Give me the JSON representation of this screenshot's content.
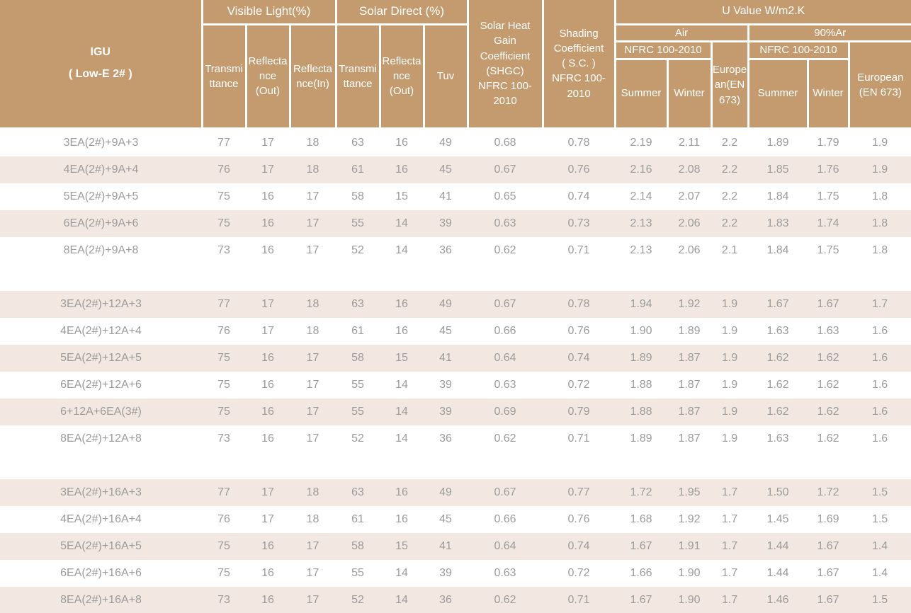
{
  "colors": {
    "header_bg": "#C49B6E",
    "header_text": "#FFFFFF",
    "stripe_bg": "#F3E8E1",
    "text": "#9B9B9B",
    "rule": "#C0976B"
  },
  "table": {
    "header": {
      "igu": "IGU\n( Low-E 2# )",
      "visible_light": "Visible Light(%)",
      "solar_direct": "Solar Direct (%)",
      "vl_transmittance": "Transmi\nttance",
      "vl_reflectance_out": "Reflecta\nnce\n(Out)",
      "vl_reflectance_in": "Reflecta\nnce(In)",
      "sd_transmittance": "Transmi\nttance",
      "sd_reflectance_out": "Reflecta\nnce\n(Out)",
      "tuv": "Tuv",
      "shgc": "Solar Heat\nGain\nCoefficient\n(SHGC)\nNFRC 100-\n2010",
      "shading_coefficient": "Shading\nCoefficient\n( S.C. )\nNFRC 100-\n2010",
      "u_value": "U Value W/m2.K",
      "air": "Air",
      "argon": "90%Ar",
      "nfrc_air": "NFRC 100-2010",
      "nfrc_argon": "NFRC 100-2010",
      "european_air": "Europe\nan(EN\n673)",
      "european_argon": "European\n(EN 673)",
      "summer_air": "Summer",
      "winter_air": "Winter",
      "summer_argon": "Summer",
      "winter_argon": "Winter"
    },
    "rows": [
      {
        "name": "3EA(2#)+9A+3",
        "shaded": false,
        "values": [
          "77",
          "17",
          "18",
          "63",
          "16",
          "49",
          "0.68",
          "0.78",
          "2.19",
          "2.11",
          "2.2",
          "1.89",
          "1.79",
          "1.9"
        ]
      },
      {
        "name": "4EA(2#)+9A+4",
        "shaded": true,
        "values": [
          "76",
          "17",
          "18",
          "61",
          "16",
          "45",
          "0.67",
          "0.76",
          "2.16",
          "2.08",
          "2.2",
          "1.85",
          "1.76",
          "1.9"
        ]
      },
      {
        "name": "5EA(2#)+9A+5",
        "shaded": false,
        "values": [
          "75",
          "16",
          "17",
          "58",
          "15",
          "41",
          "0.65",
          "0.74",
          "2.14",
          "2.07",
          "2.2",
          "1.84",
          "1.75",
          "1.8"
        ]
      },
      {
        "name": "6EA(2#)+9A+6",
        "shaded": true,
        "values": [
          "75",
          "16",
          "17",
          "55",
          "14",
          "39",
          "0.63",
          "0.73",
          "2.13",
          "2.06",
          "2.2",
          "1.83",
          "1.74",
          "1.8"
        ]
      },
      {
        "name": "8EA(2#)+9A+8",
        "shaded": false,
        "values": [
          "73",
          "16",
          "17",
          "52",
          "14",
          "36",
          "0.62",
          "0.71",
          "2.13",
          "2.06",
          "2.1",
          "1.84",
          "1.75",
          "1.8"
        ]
      },
      {
        "spacer": true
      },
      {
        "name": "3EA(2#)+12A+3",
        "shaded": true,
        "values": [
          "77",
          "17",
          "18",
          "63",
          "16",
          "49",
          "0.67",
          "0.78",
          "1.94",
          "1.92",
          "1.9",
          "1.67",
          "1.67",
          "1.7"
        ]
      },
      {
        "name": "4EA(2#)+12A+4",
        "shaded": false,
        "values": [
          "76",
          "17",
          "18",
          "61",
          "16",
          "45",
          "0.66",
          "0.76",
          "1.90",
          "1.89",
          "1.9",
          "1.63",
          "1.63",
          "1.6"
        ]
      },
      {
        "name": "5EA(2#)+12A+5",
        "shaded": true,
        "values": [
          "75",
          "16",
          "17",
          "58",
          "15",
          "41",
          "0.64",
          "0.74",
          "1.89",
          "1.87",
          "1.9",
          "1.62",
          "1.62",
          "1.6"
        ]
      },
      {
        "name": "6EA(2#)+12A+6",
        "shaded": false,
        "values": [
          "75",
          "16",
          "17",
          "55",
          "14",
          "39",
          "0.63",
          "0.72",
          "1.88",
          "1.87",
          "1.9",
          "1.62",
          "1.62",
          "1.6"
        ]
      },
      {
        "name": "6+12A+6EA(3#)",
        "shaded": true,
        "values": [
          "75",
          "16",
          "17",
          "55",
          "14",
          "39",
          "0.69",
          "0.79",
          "1.88",
          "1.87",
          "1.9",
          "1.62",
          "1.62",
          "1.6"
        ]
      },
      {
        "name": "8EA(2#)+12A+8",
        "shaded": false,
        "values": [
          "73",
          "16",
          "17",
          "52",
          "14",
          "36",
          "0.62",
          "0.71",
          "1.89",
          "1.87",
          "1.9",
          "1.63",
          "1.62",
          "1.6"
        ]
      },
      {
        "spacer": true
      },
      {
        "name": "3EA(2#)+16A+3",
        "shaded": true,
        "values": [
          "77",
          "17",
          "18",
          "63",
          "16",
          "49",
          "0.67",
          "0.77",
          "1.72",
          "1.95",
          "1.7",
          "1.50",
          "1.72",
          "1.5"
        ]
      },
      {
        "name": "4EA(2#)+16A+4",
        "shaded": false,
        "values": [
          "76",
          "17",
          "18",
          "61",
          "16",
          "45",
          "0.66",
          "0.76",
          "1.68",
          "1.92",
          "1.7",
          "1.45",
          "1.69",
          "1.5"
        ]
      },
      {
        "name": "5EA(2#)+16A+5",
        "shaded": true,
        "values": [
          "75",
          "16",
          "17",
          "58",
          "15",
          "41",
          "0.64",
          "0.74",
          "1.67",
          "1.91",
          "1.7",
          "1.44",
          "1.67",
          "1.4"
        ]
      },
      {
        "name": "6EA(2#)+16A+6",
        "shaded": false,
        "values": [
          "75",
          "16",
          "17",
          "55",
          "14",
          "39",
          "0.63",
          "0.72",
          "1.66",
          "1.90",
          "1.7",
          "1.44",
          "1.67",
          "1.4"
        ]
      },
      {
        "name": "8EA(2#)+16A+8",
        "shaded": true,
        "values": [
          "73",
          "16",
          "17",
          "52",
          "14",
          "36",
          "0.62",
          "0.71",
          "1.67",
          "1.90",
          "1.7",
          "1.46",
          "1.67",
          "1.5"
        ]
      }
    ]
  }
}
